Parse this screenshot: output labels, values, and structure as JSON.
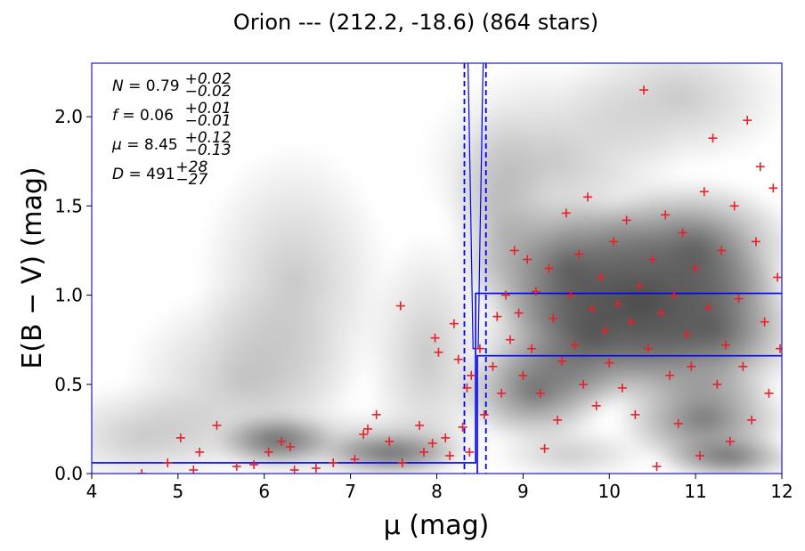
{
  "chart_data": {
    "type": "scatter",
    "title": "Orion --- (212.2, -18.6) (864 stars)",
    "xlabel": "μ (mag)",
    "ylabel": "E(B − V) (mag)",
    "xlim": [
      4,
      12
    ],
    "ylim": [
      0,
      2.3
    ],
    "x_ticks": [
      "4",
      "5",
      "6",
      "7",
      "8",
      "9",
      "10",
      "11",
      "12"
    ],
    "y_ticks": [
      "0.0",
      "0.5",
      "1.0",
      "1.5",
      "2.0"
    ],
    "grid": false,
    "marker_color": "#e8202a",
    "line_color": "#0000ff",
    "annotations": [
      {
        "name": "N",
        "value": "0.79",
        "plus": "+0.02",
        "minus": "−0.02"
      },
      {
        "name": "f",
        "value": "0.06",
        "plus": "+0.01",
        "minus": "−0.01"
      },
      {
        "name": "μ",
        "value": "8.45",
        "plus": "+0.12",
        "minus": "−0.13"
      },
      {
        "name": "D",
        "value": "491",
        "plus": "+28",
        "minus": "−27"
      }
    ],
    "step_model": {
      "foreground_ebv": 0.06,
      "distance_modulus": 8.45,
      "background_ebv_low": 0.66,
      "background_ebv_high": 1.01
    },
    "mu_bounds": [
      8.32,
      8.57
    ],
    "stars_sample": [
      [
        4.58,
        0.0
      ],
      [
        4.88,
        0.06
      ],
      [
        5.03,
        0.2
      ],
      [
        5.18,
        0.02
      ],
      [
        5.25,
        0.12
      ],
      [
        5.45,
        0.27
      ],
      [
        5.68,
        0.04
      ],
      [
        5.88,
        0.05
      ],
      [
        6.05,
        0.12
      ],
      [
        6.2,
        0.18
      ],
      [
        6.3,
        0.15
      ],
      [
        6.35,
        0.02
      ],
      [
        6.6,
        0.03
      ],
      [
        6.8,
        0.06
      ],
      [
        7.05,
        0.08
      ],
      [
        7.15,
        0.22
      ],
      [
        7.2,
        0.25
      ],
      [
        7.3,
        0.33
      ],
      [
        7.45,
        0.18
      ],
      [
        7.58,
        0.94
      ],
      [
        7.6,
        0.06
      ],
      [
        7.8,
        0.27
      ],
      [
        7.85,
        0.12
      ],
      [
        7.95,
        0.17
      ],
      [
        7.98,
        0.76
      ],
      [
        8.02,
        0.68
      ],
      [
        8.1,
        0.2
      ],
      [
        8.15,
        0.1
      ],
      [
        8.2,
        0.84
      ],
      [
        8.25,
        0.64
      ],
      [
        8.3,
        0.26
      ],
      [
        8.35,
        0.48
      ],
      [
        8.38,
        0.12
      ],
      [
        8.4,
        0.55
      ],
      [
        8.5,
        0.7
      ],
      [
        8.55,
        0.33
      ],
      [
        8.65,
        0.6
      ],
      [
        8.7,
        0.88
      ],
      [
        8.75,
        0.45
      ],
      [
        8.8,
        1.0
      ],
      [
        8.85,
        0.75
      ],
      [
        8.9,
        1.25
      ],
      [
        8.95,
        0.9
      ],
      [
        9.0,
        0.55
      ],
      [
        9.05,
        1.2
      ],
      [
        9.1,
        0.7
      ],
      [
        9.15,
        1.02
      ],
      [
        9.2,
        0.45
      ],
      [
        9.25,
        0.14
      ],
      [
        9.3,
        1.15
      ],
      [
        9.35,
        0.87
      ],
      [
        9.4,
        0.3
      ],
      [
        9.45,
        0.63
      ],
      [
        9.5,
        1.46
      ],
      [
        9.55,
        1.0
      ],
      [
        9.6,
        0.72
      ],
      [
        9.65,
        1.23
      ],
      [
        9.7,
        0.5
      ],
      [
        9.75,
        1.55
      ],
      [
        9.8,
        0.92
      ],
      [
        9.85,
        0.38
      ],
      [
        9.9,
        1.1
      ],
      [
        9.95,
        0.8
      ],
      [
        10.0,
        0.62
      ],
      [
        10.05,
        1.3
      ],
      [
        10.1,
        0.95
      ],
      [
        10.15,
        0.48
      ],
      [
        10.2,
        1.42
      ],
      [
        10.25,
        0.85
      ],
      [
        10.3,
        0.33
      ],
      [
        10.35,
        1.05
      ],
      [
        10.4,
        2.15
      ],
      [
        10.45,
        0.7
      ],
      [
        10.5,
        1.2
      ],
      [
        10.55,
        0.04
      ],
      [
        10.6,
        0.9
      ],
      [
        10.65,
        1.45
      ],
      [
        10.7,
        0.55
      ],
      [
        10.75,
        1.0
      ],
      [
        10.8,
        0.28
      ],
      [
        10.85,
        1.35
      ],
      [
        10.9,
        0.78
      ],
      [
        10.95,
        0.6
      ],
      [
        11.0,
        1.15
      ],
      [
        11.05,
        0.1
      ],
      [
        11.1,
        1.58
      ],
      [
        11.15,
        0.93
      ],
      [
        11.2,
        1.88
      ],
      [
        11.25,
        0.5
      ],
      [
        11.3,
        1.25
      ],
      [
        11.35,
        0.72
      ],
      [
        11.4,
        0.18
      ],
      [
        11.45,
        1.5
      ],
      [
        11.5,
        0.98
      ],
      [
        11.55,
        0.6
      ],
      [
        11.6,
        1.98
      ],
      [
        11.65,
        0.3
      ],
      [
        11.7,
        1.3
      ],
      [
        11.75,
        1.72
      ],
      [
        11.8,
        0.85
      ],
      [
        11.85,
        0.45
      ],
      [
        11.9,
        1.6
      ],
      [
        11.95,
        1.1
      ],
      [
        11.98,
        0.7
      ]
    ]
  }
}
